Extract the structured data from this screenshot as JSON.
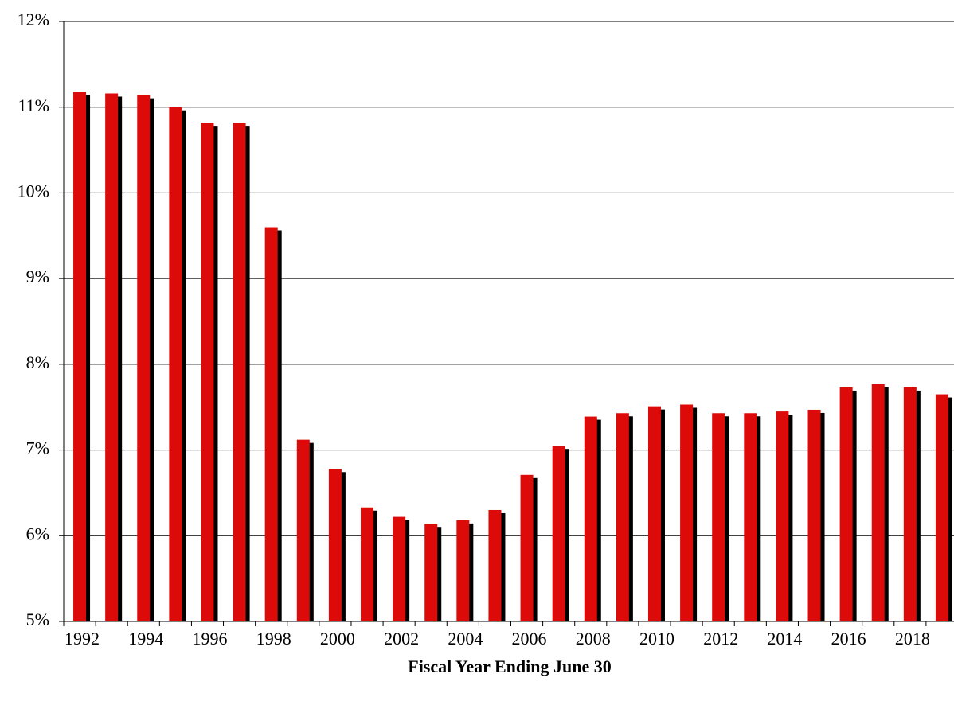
{
  "chart_data": {
    "type": "bar",
    "x_label": "Fiscal Year Ending June 30",
    "categories": [
      1992,
      null,
      1994,
      null,
      1996,
      null,
      1998,
      null,
      2000,
      null,
      2002,
      null,
      2004,
      null,
      2006,
      null,
      2008,
      null,
      2010,
      null,
      2012,
      null,
      2014,
      null,
      2016,
      null,
      2018,
      null
    ],
    "values": [
      11.18,
      11.16,
      11.14,
      11.0,
      10.82,
      10.82,
      9.6,
      7.12,
      6.78,
      6.33,
      6.22,
      6.14,
      6.18,
      6.3,
      6.71,
      7.05,
      7.39,
      7.43,
      7.51,
      7.53,
      7.43,
      7.43,
      7.45,
      7.47,
      7.73,
      7.77,
      7.73,
      7.65
    ],
    "color": "#dd0a0a",
    "ylim": [
      5,
      12
    ],
    "yticks": [
      {
        "value": 5,
        "label": "5%"
      },
      {
        "value": 6,
        "label": "6%"
      },
      {
        "value": 7,
        "label": "7%"
      },
      {
        "value": 8,
        "label": "8%"
      },
      {
        "value": 9,
        "label": "9%"
      },
      {
        "value": 10,
        "label": "10%"
      },
      {
        "value": 11,
        "label": "11%"
      },
      {
        "value": 12,
        "label": "12%"
      }
    ],
    "grid": true
  }
}
